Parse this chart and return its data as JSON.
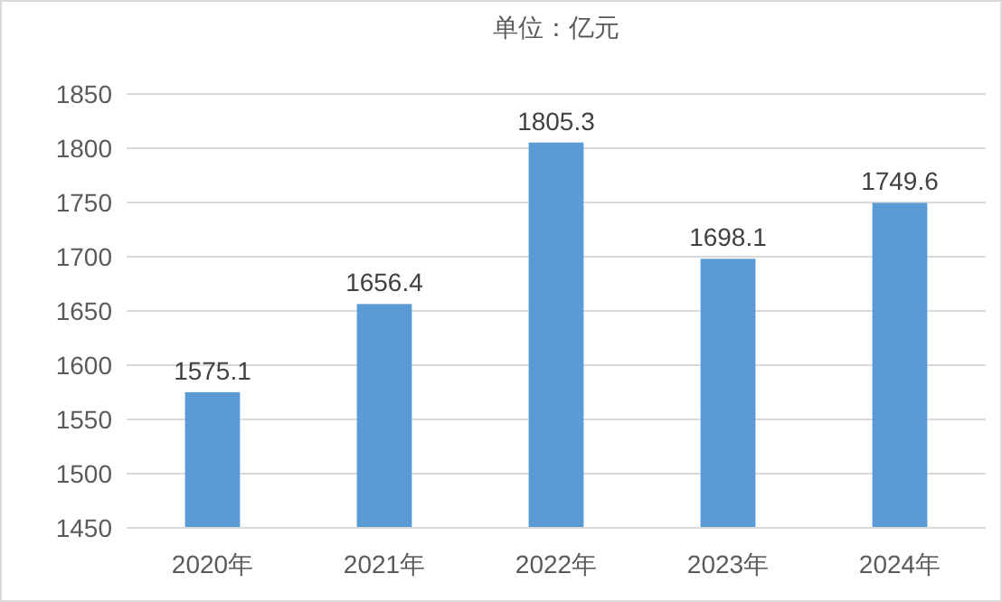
{
  "chart_data": {
    "type": "bar",
    "title": "单位：亿元",
    "categories": [
      "2020年",
      "2021年",
      "2022年",
      "2023年",
      "2024年"
    ],
    "values": [
      1575.1,
      1656.4,
      1805.3,
      1698.1,
      1749.6
    ],
    "color": "#5b9bd5",
    "ylim": [
      1450,
      1850
    ],
    "yticks": [
      1450,
      1500,
      1550,
      1600,
      1650,
      1700,
      1750,
      1800,
      1850
    ],
    "grid": "y",
    "data_labels": true
  }
}
